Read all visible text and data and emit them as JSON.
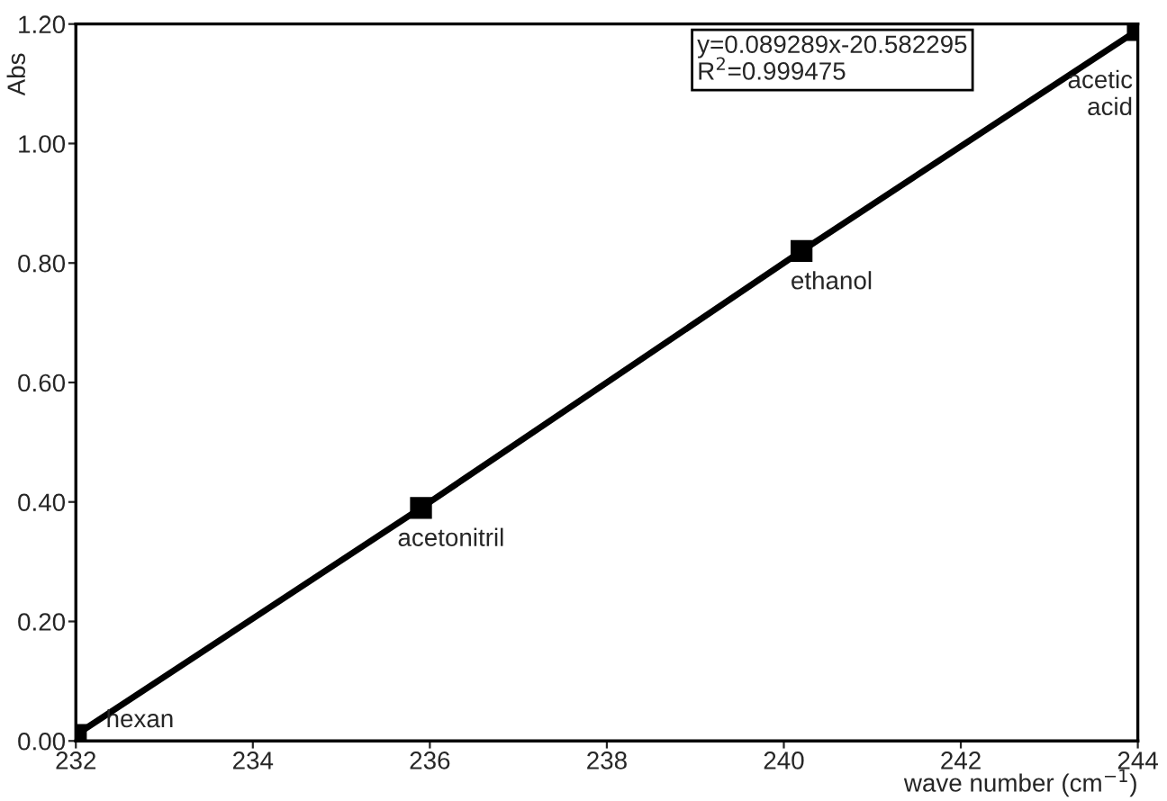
{
  "chart_data": {
    "type": "line",
    "xlabel": "wave number (cm$^{−1}$)",
    "ylabel": "Abs",
    "x": [
      232,
      235.9,
      240.2,
      244
    ],
    "series": [
      {
        "color": "#000000",
        "values": [
          0.01,
          0.39,
          0.82,
          1.19
        ]
      }
    ],
    "marker": "square",
    "line_style": "solid",
    "grid": false,
    "legend": false,
    "xlim": [
      232,
      244
    ],
    "xticks": [
      232,
      234,
      236,
      238,
      240,
      242,
      244
    ],
    "ylim": [
      0,
      1.2
    ],
    "yticks": [
      {
        "value": 0,
        "label": "0.00"
      },
      {
        "value": 0.2,
        "label": "0.20"
      },
      {
        "value": 0.4,
        "label": "0.40"
      },
      {
        "value": 0.6,
        "label": "0.60"
      },
      {
        "value": 0.8,
        "label": "0.80"
      },
      {
        "value": 1.0,
        "label": "1.00"
      },
      {
        "value": 1.2,
        "label": "1.20"
      }
    ],
    "annotations": [
      {
        "text": "hexan",
        "x": 232,
        "y": 0.01
      },
      {
        "text": "acetonitril",
        "x": 235.9,
        "y": 0.39
      },
      {
        "text": "ethanol",
        "x": 240.2,
        "y": 0.82
      },
      {
        "text": "acetic\nacid",
        "x": 244,
        "y": 1.19
      },
      "y=0.089289x-20.582295\nR$^{2}$=0.999475"
    ]
  }
}
